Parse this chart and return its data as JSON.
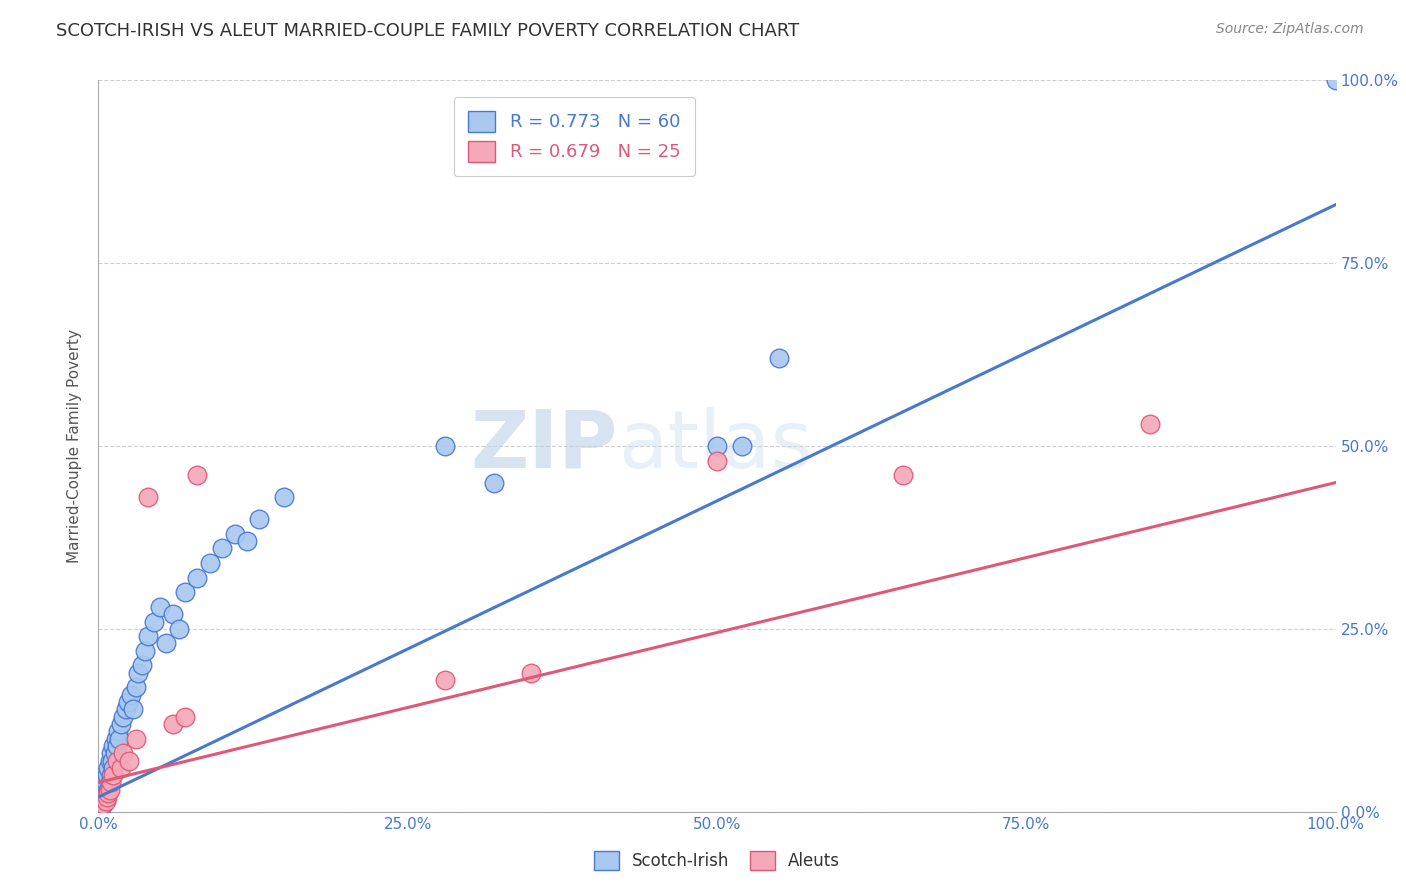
{
  "title": "SCOTCH-IRISH VS ALEUT MARRIED-COUPLE FAMILY POVERTY CORRELATION CHART",
  "source": "Source: ZipAtlas.com",
  "ylabel": "Married-Couple Family Poverty",
  "xlim": [
    0.0,
    1.0
  ],
  "ylim": [
    0.0,
    1.0
  ],
  "xticks": [
    0.0,
    0.25,
    0.5,
    0.75,
    1.0
  ],
  "yticks": [
    0.0,
    0.25,
    0.5,
    0.75,
    1.0
  ],
  "xticklabels": [
    "0.0%",
    "25.0%",
    "50.0%",
    "75.0%",
    "100.0%"
  ],
  "right_yticklabels": [
    "0.0%",
    "25.0%",
    "50.0%",
    "75.0%",
    "100.0%"
  ],
  "scotch_irish_color": "#A8C8F0",
  "aleut_color": "#F4A8B8",
  "scotch_irish_line_color": "#4878D0",
  "aleut_line_color": "#E05878",
  "scotch_irish_R": 0.773,
  "scotch_irish_N": 60,
  "aleut_R": 0.679,
  "aleut_N": 25,
  "watermark_zip": "ZIP",
  "watermark_atlas": "atlas",
  "scotch_irish_line": [
    0.0,
    0.02,
    1.0,
    0.83
  ],
  "aleut_line": [
    0.0,
    0.04,
    1.0,
    0.45
  ],
  "scotch_irish_x": [
    0.001,
    0.002,
    0.002,
    0.003,
    0.003,
    0.003,
    0.004,
    0.004,
    0.004,
    0.005,
    0.005,
    0.005,
    0.006,
    0.006,
    0.007,
    0.007,
    0.008,
    0.008,
    0.009,
    0.009,
    0.01,
    0.01,
    0.011,
    0.012,
    0.012,
    0.013,
    0.014,
    0.015,
    0.016,
    0.017,
    0.018,
    0.02,
    0.022,
    0.024,
    0.026,
    0.028,
    0.03,
    0.032,
    0.035,
    0.038,
    0.04,
    0.045,
    0.05,
    0.055,
    0.06,
    0.065,
    0.07,
    0.08,
    0.09,
    0.1,
    0.11,
    0.12,
    0.13,
    0.15,
    0.28,
    0.32,
    0.5,
    0.52,
    0.55,
    1.0
  ],
  "scotch_irish_y": [
    0.01,
    0.005,
    0.02,
    0.01,
    0.015,
    0.025,
    0.01,
    0.02,
    0.03,
    0.015,
    0.02,
    0.03,
    0.02,
    0.04,
    0.025,
    0.05,
    0.03,
    0.06,
    0.04,
    0.07,
    0.05,
    0.08,
    0.07,
    0.06,
    0.09,
    0.08,
    0.1,
    0.09,
    0.11,
    0.1,
    0.12,
    0.13,
    0.14,
    0.15,
    0.16,
    0.14,
    0.17,
    0.19,
    0.2,
    0.22,
    0.24,
    0.26,
    0.28,
    0.23,
    0.27,
    0.25,
    0.3,
    0.32,
    0.34,
    0.36,
    0.38,
    0.37,
    0.4,
    0.43,
    0.5,
    0.45,
    0.5,
    0.5,
    0.62,
    1.0
  ],
  "aleut_x": [
    0.001,
    0.002,
    0.003,
    0.004,
    0.005,
    0.006,
    0.007,
    0.008,
    0.009,
    0.01,
    0.012,
    0.015,
    0.018,
    0.02,
    0.025,
    0.03,
    0.04,
    0.06,
    0.07,
    0.08,
    0.28,
    0.35,
    0.5,
    0.65,
    0.85
  ],
  "aleut_y": [
    0.005,
    0.01,
    0.015,
    0.01,
    0.02,
    0.015,
    0.02,
    0.025,
    0.03,
    0.04,
    0.05,
    0.07,
    0.06,
    0.08,
    0.07,
    0.1,
    0.43,
    0.12,
    0.13,
    0.46,
    0.18,
    0.19,
    0.48,
    0.46,
    0.53
  ],
  "background_color": "#ffffff",
  "grid_color": "#d0d0d0"
}
